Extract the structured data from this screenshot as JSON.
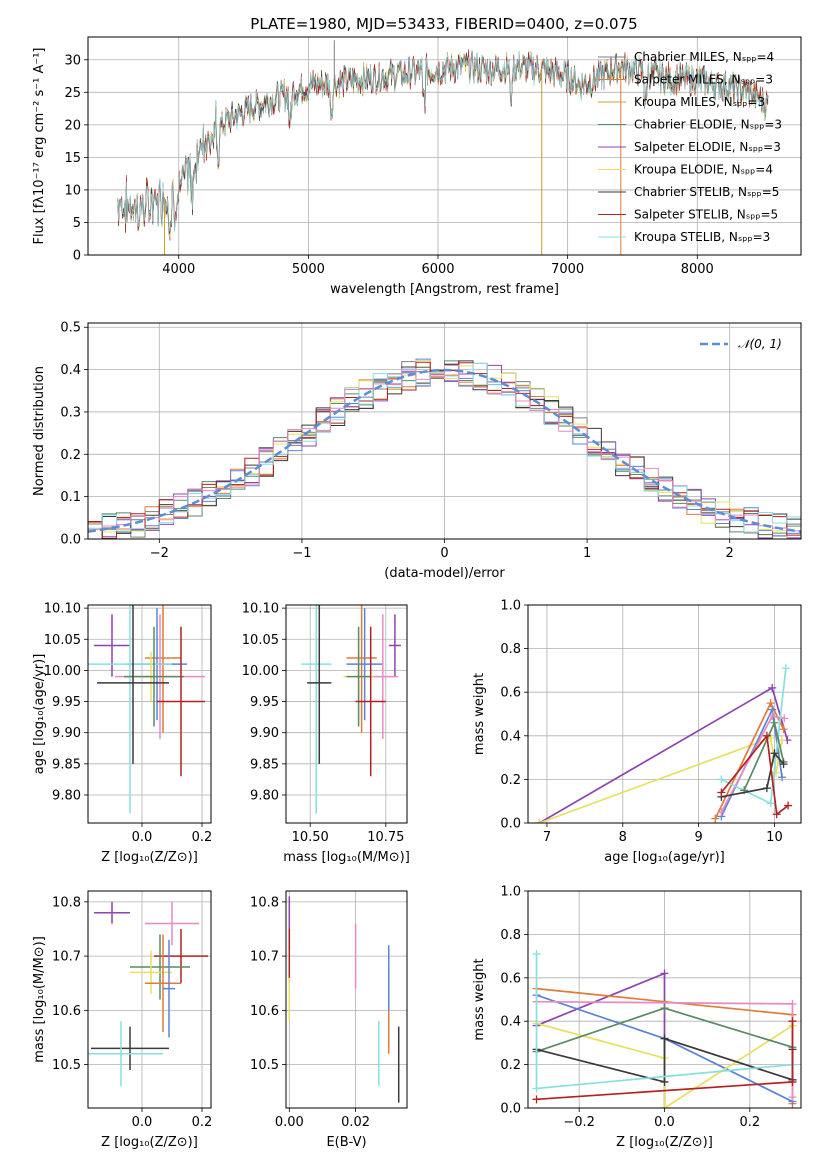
{
  "figure_title": "PLATE=1980, MJD=53433, FIBERID=0400, z=0.075",
  "series_colors": [
    "#7f7f7f",
    "#e07b39",
    "#c8a42a",
    "#5a8a64",
    "#8e44ad",
    "#e8df60",
    "#3a3a3a",
    "#b22222",
    "#88dfe0"
  ],
  "chart_data": [
    {
      "id": "spectrum",
      "type": "line",
      "xlabel": "wavelength [Angstrom, rest frame]",
      "ylabel": "Flux [fλ10⁻¹⁷ erg cm⁻² s⁻¹ A⁻¹]",
      "xlim": [
        3300,
        8800
      ],
      "ylim": [
        0,
        33.5
      ],
      "xticks": [
        4000,
        5000,
        6000,
        7000,
        8000
      ],
      "yticks": [
        0,
        5,
        10,
        15,
        20,
        25,
        30
      ],
      "legend_position": "right",
      "legend": [
        {
          "label": "Chabrier MILES, Nₛₚₚ=4",
          "color": "#7f7f7f"
        },
        {
          "label": "Salpeter MILES, Nₛₚₚ=3",
          "color": "#e07b39"
        },
        {
          "label": "Kroupa MILES, Nₛₚₚ=3",
          "color": "#c8a42a"
        },
        {
          "label": "Chabrier ELODIE, Nₛₚₚ=3",
          "color": "#5a8a64"
        },
        {
          "label": "Salpeter ELODIE, Nₛₚₚ=3",
          "color": "#8e44ad"
        },
        {
          "label": "Kroupa ELODIE, Nₛₚₚ=4",
          "color": "#e8df60"
        },
        {
          "label": "Chabrier STELIB, Nₛₚₚ=5",
          "color": "#3a3a3a"
        },
        {
          "label": "Salpeter STELIB, Nₛₚₚ=5",
          "color": "#b22222"
        },
        {
          "label": "Kroupa STELIB, Nₛₚₚ=3",
          "color": "#88dfe0"
        }
      ],
      "continuum": {
        "wavelength": [
          3530,
          3700,
          3900,
          4000,
          4100,
          4200,
          4400,
          4600,
          4800,
          5000,
          5200,
          5400,
          5600,
          5800,
          6000,
          6200,
          6400,
          6600,
          6800,
          7000,
          7100,
          7200,
          7300,
          7400,
          7600,
          7800,
          8000,
          8200,
          8400,
          8550
        ],
        "flux": [
          8,
          7,
          9,
          10,
          13,
          18,
          21,
          23,
          24.5,
          26,
          26.5,
          27,
          27.5,
          28,
          28.5,
          29,
          28.5,
          29,
          28.5,
          27.5,
          26,
          27,
          28,
          29,
          28,
          27,
          27,
          26,
          25,
          23
        ]
      },
      "spikes": [
        {
          "wavelength": 3890,
          "flux": 0,
          "color": "#c8a42a"
        },
        {
          "wavelength": 5200,
          "flux": 33,
          "color": "#7f7f7f"
        },
        {
          "wavelength": 6800,
          "flux": 0,
          "color": "#c8a42a"
        },
        {
          "wavelength": 7410,
          "flux": 0,
          "color": "#e07b39"
        }
      ]
    },
    {
      "id": "residuals",
      "type": "histogram",
      "xlabel": "(data-model)/error",
      "ylabel": "Normed distribution",
      "xlim": [
        -2.5,
        2.5
      ],
      "ylim": [
        0,
        0.51
      ],
      "xticks": [
        -2,
        -1,
        0,
        1,
        2
      ],
      "yticks": [
        0.0,
        0.1,
        0.2,
        0.3,
        0.4,
        0.5
      ],
      "legend_position": "top-right",
      "reference_curve": {
        "label": "𝒩(0, 1)",
        "mean": 0,
        "sigma": 1,
        "color": "#5a8fd8",
        "style": "dashed"
      },
      "bin_width": 0.1,
      "grid": true
    },
    {
      "id": "age_vs_Z",
      "type": "scatter",
      "xlabel": "Z [log₁₀(Z/Z⊙)]",
      "ylabel": "age  [log₁₀(age/yr)]",
      "xlim": [
        -0.18,
        0.23
      ],
      "ylim": [
        9.755,
        10.105
      ],
      "xticks": [
        0.0,
        0.2
      ],
      "yticks": [
        9.8,
        9.85,
        9.9,
        9.95,
        10.0,
        10.05,
        10.1
      ],
      "points": [
        {
          "x": -0.1,
          "y": 10.04,
          "xerr": 0.06,
          "yerr": 0.05,
          "color": "#8e44ad"
        },
        {
          "x": 0.07,
          "y": 10.02,
          "xerr": 0.06,
          "yerr": 0.12,
          "color": "#e07b39"
        },
        {
          "x": 0.05,
          "y": 10.01,
          "xerr": 0.1,
          "yerr": 0.09,
          "color": "#5b84d6"
        },
        {
          "x": -0.04,
          "y": 10.01,
          "xerr": 0.14,
          "yerr": 0.24,
          "color": "#88dfe0"
        },
        {
          "x": 0.06,
          "y": 9.99,
          "xerr": 0.15,
          "yerr": 0.1,
          "color": "#e78ac3"
        },
        {
          "x": 0.03,
          "y": 9.99,
          "xerr": 0.07,
          "yerr": 0.04,
          "color": "#e8df60"
        },
        {
          "x": 0.04,
          "y": 9.99,
          "xerr": 0.1,
          "yerr": 0.08,
          "color": "#5a8a64"
        },
        {
          "x": -0.03,
          "y": 9.98,
          "xerr": 0.12,
          "yerr": 0.13,
          "color": "#3a3a3a"
        },
        {
          "x": 0.13,
          "y": 9.95,
          "xerr": 0.08,
          "yerr": 0.12,
          "color": "#b22222"
        }
      ]
    },
    {
      "id": "age_vs_mass",
      "type": "scatter",
      "xlabel": "mass [log₁₀(M/M⊙)]",
      "ylabel": "",
      "xlim": [
        10.42,
        10.82
      ],
      "ylim": [
        9.755,
        10.105
      ],
      "xticks": [
        10.5,
        10.75
      ],
      "yticks": [
        9.8,
        9.85,
        9.9,
        9.95,
        10.0,
        10.05,
        10.1
      ],
      "points": [
        {
          "x": 10.78,
          "y": 10.04,
          "xerr": 0.02,
          "yerr": 0.05,
          "color": "#8e44ad"
        },
        {
          "x": 10.67,
          "y": 10.02,
          "xerr": 0.05,
          "yerr": 0.12,
          "color": "#e07b39"
        },
        {
          "x": 10.68,
          "y": 10.01,
          "xerr": 0.06,
          "yerr": 0.09,
          "color": "#5b84d6"
        },
        {
          "x": 10.52,
          "y": 10.01,
          "xerr": 0.05,
          "yerr": 0.24,
          "color": "#88dfe0"
        },
        {
          "x": 10.74,
          "y": 9.99,
          "xerr": 0.05,
          "yerr": 0.1,
          "color": "#e78ac3"
        },
        {
          "x": 10.66,
          "y": 9.99,
          "xerr": 0.05,
          "yerr": 0.04,
          "color": "#e8df60"
        },
        {
          "x": 10.66,
          "y": 9.99,
          "xerr": 0.04,
          "yerr": 0.08,
          "color": "#5a8a64"
        },
        {
          "x": 10.53,
          "y": 9.98,
          "xerr": 0.04,
          "yerr": 0.13,
          "color": "#3a3a3a"
        },
        {
          "x": 10.7,
          "y": 9.95,
          "xerr": 0.05,
          "yerr": 0.12,
          "color": "#b22222"
        }
      ]
    },
    {
      "id": "weight_vs_age",
      "type": "line",
      "xlabel": "age  [log₁₀(age/yr)]",
      "ylabel": "mass weight",
      "xlim": [
        6.75,
        10.35
      ],
      "ylim": [
        0,
        1.0
      ],
      "xticks": [
        7,
        8,
        9,
        10
      ],
      "yticks": [
        0.0,
        0.2,
        0.4,
        0.6,
        0.8,
        1.0
      ],
      "grid": true,
      "series": [
        {
          "color": "#8e44ad",
          "x": [
            6.9,
            9.97,
            10.17
          ],
          "y": [
            0.0,
            0.62,
            0.38
          ]
        },
        {
          "color": "#e8df60",
          "x": [
            6.9,
            9.95,
            10.02,
            10.1
          ],
          "y": [
            0.0,
            0.39,
            0.23,
            0.38
          ]
        },
        {
          "color": "#e07b39",
          "x": [
            9.22,
            9.95,
            10.12
          ],
          "y": [
            0.02,
            0.55,
            0.43
          ]
        },
        {
          "color": "#5b84d6",
          "x": [
            9.3,
            9.97,
            10.1
          ],
          "y": [
            0.03,
            0.52,
            0.21
          ]
        },
        {
          "color": "#e78ac3",
          "x": [
            9.3,
            9.97,
            10.13
          ],
          "y": [
            0.05,
            0.49,
            0.48
          ]
        },
        {
          "color": "#88dfe0",
          "x": [
            9.3,
            9.95,
            10.15
          ],
          "y": [
            0.2,
            0.09,
            0.71
          ]
        },
        {
          "color": "#5a8a64",
          "x": [
            9.6,
            10.0,
            10.12
          ],
          "y": [
            0.15,
            0.46,
            0.28
          ]
        },
        {
          "color": "#3a3a3a",
          "x": [
            9.3,
            9.9,
            10.0,
            10.12
          ],
          "y": [
            0.12,
            0.16,
            0.32,
            0.27
          ]
        },
        {
          "color": "#b22222",
          "x": [
            9.3,
            9.9,
            10.03,
            10.18
          ],
          "y": [
            0.14,
            0.4,
            0.04,
            0.08
          ]
        }
      ]
    },
    {
      "id": "mass_vs_Z",
      "type": "scatter",
      "xlabel": "Z [log₁₀(Z/Z⊙)]",
      "ylabel": "mass [log₁₀(M/M⊙)]",
      "xlim": [
        -0.18,
        0.23
      ],
      "ylim": [
        10.42,
        10.82
      ],
      "xticks": [
        0.0,
        0.2
      ],
      "yticks": [
        10.5,
        10.6,
        10.7,
        10.8
      ],
      "points": [
        {
          "x": -0.1,
          "y": 10.78,
          "xerr": 0.06,
          "yerr": 0.02,
          "color": "#8e44ad"
        },
        {
          "x": 0.1,
          "y": 10.76,
          "xerr": 0.09,
          "yerr": 0.04,
          "color": "#e78ac3"
        },
        {
          "x": 0.13,
          "y": 10.7,
          "xerr": 0.09,
          "yerr": 0.05,
          "color": "#b22222"
        },
        {
          "x": 0.06,
          "y": 10.68,
          "xerr": 0.1,
          "yerr": 0.06,
          "color": "#5a8a64"
        },
        {
          "x": 0.03,
          "y": 10.67,
          "xerr": 0.07,
          "yerr": 0.04,
          "color": "#e8df60"
        },
        {
          "x": 0.07,
          "y": 10.65,
          "xerr": 0.06,
          "yerr": 0.09,
          "color": "#e07b39"
        },
        {
          "x": 0.09,
          "y": 10.64,
          "xerr": 0.02,
          "yerr": 0.09,
          "color": "#5b84d6"
        },
        {
          "x": -0.04,
          "y": 10.53,
          "xerr": 0.13,
          "yerr": 0.04,
          "color": "#3a3a3a"
        },
        {
          "x": -0.07,
          "y": 10.52,
          "xerr": 0.14,
          "yerr": 0.06,
          "color": "#88dfe0"
        }
      ]
    },
    {
      "id": "mass_vs_ebv",
      "type": "scatter",
      "xlabel": "E(B-V)",
      "ylabel": "",
      "xlim": [
        -0.001,
        0.0355
      ],
      "ylim": [
        10.42,
        10.82
      ],
      "xticks": [
        0.0,
        0.02
      ],
      "yticks": [
        10.5,
        10.6,
        10.7,
        10.8
      ],
      "points": [
        {
          "x": 0.0,
          "y": 10.76,
          "yerr": 0.05,
          "color": "#8e44ad"
        },
        {
          "x": 0.0,
          "y": 10.7,
          "yerr": 0.05,
          "color": "#b22222"
        },
        {
          "x": 0.0,
          "y": 10.62,
          "yerr": 0.04,
          "color": "#e8df60"
        },
        {
          "x": 0.02,
          "y": 10.7,
          "yerr": 0.06,
          "color": "#e78ac3"
        },
        {
          "x": 0.027,
          "y": 10.52,
          "yerr": 0.06,
          "color": "#88dfe0"
        },
        {
          "x": 0.03,
          "y": 10.6,
          "yerr": 0.08,
          "color": "#e07b39"
        },
        {
          "x": 0.03,
          "y": 10.66,
          "yerr": 0.06,
          "color": "#5b84d6"
        },
        {
          "x": 0.033,
          "y": 10.5,
          "yerr": 0.07,
          "color": "#3a3a3a"
        }
      ]
    },
    {
      "id": "weight_vs_Z",
      "type": "line",
      "xlabel": "Z [log₁₀(Z/Z⊙)]",
      "ylabel": "mass weight",
      "xlim": [
        -0.32,
        0.32
      ],
      "ylim": [
        0,
        1.0
      ],
      "xticks": [
        -0.2,
        0.0,
        0.2
      ],
      "yticks": [
        0.0,
        0.2,
        0.4,
        0.6,
        0.8,
        1.0
      ],
      "grid": true,
      "series": [
        {
          "color": "#8e44ad",
          "x": [
            -0.3,
            0.0,
            0.0
          ],
          "y": [
            0.38,
            0.62,
            0.0
          ]
        },
        {
          "color": "#e07b39",
          "x": [
            -0.3,
            0.3,
            0.3
          ],
          "y": [
            0.55,
            0.43,
            0.02
          ]
        },
        {
          "color": "#5b84d6",
          "x": [
            -0.3,
            0.0,
            0.3
          ],
          "y": [
            0.52,
            0.32,
            0.03
          ]
        },
        {
          "color": "#e78ac3",
          "x": [
            -0.3,
            0.3,
            0.3
          ],
          "y": [
            0.49,
            0.48,
            0.05
          ]
        },
        {
          "color": "#e8df60",
          "x": [
            -0.3,
            0.0,
            0.0,
            0.3
          ],
          "y": [
            0.39,
            0.23,
            0.0,
            0.38
          ]
        },
        {
          "color": "#5a8a64",
          "x": [
            -0.3,
            0.0,
            0.3
          ],
          "y": [
            0.26,
            0.46,
            0.28
          ]
        },
        {
          "color": "#3a3a3a",
          "x": [
            -0.3,
            0.0,
            0.0,
            0.3,
            0.3
          ],
          "y": [
            0.27,
            0.12,
            0.32,
            0.13,
            0.27
          ]
        },
        {
          "color": "#88dfe0",
          "x": [
            -0.3,
            -0.3,
            0.3
          ],
          "y": [
            0.71,
            0.09,
            0.2
          ]
        },
        {
          "color": "#b22222",
          "x": [
            -0.3,
            0.3,
            0.3
          ],
          "y": [
            0.04,
            0.12,
            0.4
          ]
        }
      ]
    }
  ]
}
